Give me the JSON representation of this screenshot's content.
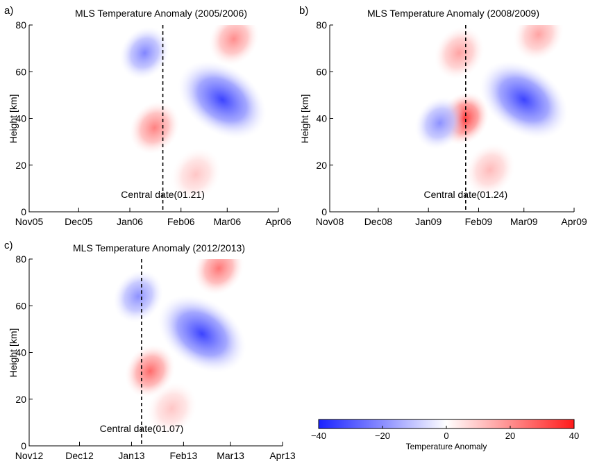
{
  "colors": {
    "cold_max": "#1a22ff",
    "neutral": "#ffffff",
    "warm_max": "#ff1a1a"
  },
  "colorbar": {
    "label": "Temperature Anomaly",
    "min": -40,
    "max": 40,
    "tick_labels": [
      "−40",
      "−20",
      "0",
      "20",
      "40"
    ],
    "tick_values": [
      -40,
      -20,
      0,
      20,
      40
    ]
  },
  "chart_data": [
    {
      "type": "heatmap",
      "panel_label": "a)",
      "title": "MLS Temperature Anomaly (2005/2006)",
      "ylabel": "Height [km]",
      "xlabel": "",
      "ylim": [
        0,
        80
      ],
      "xlim_days": [
        0,
        151
      ],
      "y_ticks": [
        "0",
        "20",
        "40",
        "60",
        "80"
      ],
      "x_ticks": [
        "Nov05",
        "Dec05",
        "Jan06",
        "Feb06",
        "Mar06",
        "Apr06"
      ],
      "central_date": {
        "label": "Central date(01.21)",
        "x": "2006-01-21"
      },
      "features": [
        {
          "type": "cold",
          "x": "2006-01-10",
          "y_km": 68,
          "anomaly": -22
        },
        {
          "type": "warm",
          "x": "2006-01-16",
          "y_km": 36,
          "anomaly": 22
        },
        {
          "type": "cold",
          "x": "2006-02-26",
          "y_km": 48,
          "anomaly": -34
        },
        {
          "type": "warm",
          "x": "2006-03-05",
          "y_km": 74,
          "anomaly": 20
        },
        {
          "type": "warm",
          "x": "2006-02-10",
          "y_km": 16,
          "anomaly": 10
        }
      ]
    },
    {
      "type": "heatmap",
      "panel_label": "b)",
      "title": "MLS Temperature Anomaly (2008/2009)",
      "ylabel": "Height [km]",
      "xlabel": "",
      "ylim": [
        0,
        80
      ],
      "xlim_days": [
        0,
        151
      ],
      "y_ticks": [
        "0",
        "20",
        "40",
        "60",
        "80"
      ],
      "x_ticks": [
        "Nov08",
        "Dec08",
        "Jan09",
        "Feb09",
        "Mar09",
        "Apr09"
      ],
      "central_date": {
        "label": "Central date(01.24)",
        "x": "2009-01-24"
      },
      "features": [
        {
          "type": "warm",
          "x": "2009-01-20",
          "y_km": 68,
          "anomaly": 16
        },
        {
          "type": "warm",
          "x": "2009-01-23",
          "y_km": 40,
          "anomaly": 34
        },
        {
          "type": "cold",
          "x": "2009-01-08",
          "y_km": 38,
          "anomaly": -20
        },
        {
          "type": "cold",
          "x": "2009-03-01",
          "y_km": 48,
          "anomaly": -34
        },
        {
          "type": "warm",
          "x": "2009-03-10",
          "y_km": 76,
          "anomaly": 16
        },
        {
          "type": "warm",
          "x": "2009-02-08",
          "y_km": 18,
          "anomaly": 12
        }
      ]
    },
    {
      "type": "heatmap",
      "panel_label": "c)",
      "title": "MLS Temperature Anomaly (2012/2013)",
      "ylabel": "Height [km]",
      "xlabel": "",
      "ylim": [
        0,
        80
      ],
      "xlim_days": [
        0,
        151
      ],
      "y_ticks": [
        "0",
        "20",
        "40",
        "60",
        "80"
      ],
      "x_ticks": [
        "Nov12",
        "Dec12",
        "Jan13",
        "Feb13",
        "Mar13",
        "Apr13"
      ],
      "central_date": {
        "label": "Central date(01.07)",
        "x": "2013-01-07"
      },
      "features": [
        {
          "type": "cold",
          "x": "2013-01-05",
          "y_km": 64,
          "anomaly": -20
        },
        {
          "type": "warm",
          "x": "2013-01-12",
          "y_km": 32,
          "anomaly": 26
        },
        {
          "type": "cold",
          "x": "2013-02-12",
          "y_km": 48,
          "anomaly": -34
        },
        {
          "type": "warm",
          "x": "2013-02-22",
          "y_km": 76,
          "anomaly": 24
        },
        {
          "type": "warm",
          "x": "2013-01-25",
          "y_km": 16,
          "anomaly": 10
        }
      ]
    }
  ]
}
